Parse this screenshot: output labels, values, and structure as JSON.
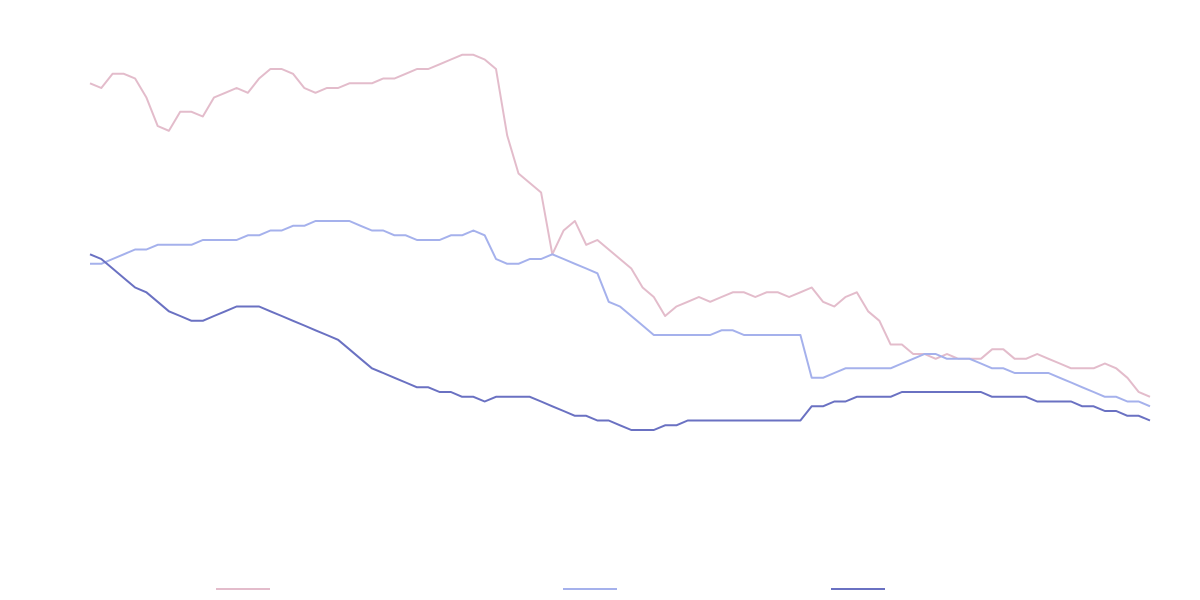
{
  "chart_data": {
    "type": "line",
    "title": "",
    "xlabel": "",
    "ylabel": "",
    "ylim": [
      0,
      100
    ],
    "grid": false,
    "legend_position": "bottom",
    "series": [
      {
        "color": "#e3bccb",
        "values": [
          93,
          92,
          95,
          95,
          94,
          90,
          84,
          83,
          87,
          87,
          86,
          90,
          91,
          92,
          91,
          94,
          96,
          96,
          95,
          92,
          91,
          92,
          92,
          93,
          93,
          93,
          94,
          94,
          95,
          96,
          96,
          97,
          98,
          99,
          99,
          98,
          96,
          82,
          74,
          72,
          70,
          57,
          62,
          64,
          59,
          60,
          58,
          56,
          54,
          50,
          48,
          44,
          46,
          47,
          48,
          47,
          48,
          49,
          49,
          48,
          49,
          49,
          48,
          49,
          50,
          47,
          46,
          48,
          49,
          45,
          43,
          38,
          38,
          36,
          36,
          35,
          36,
          35,
          35,
          35,
          37,
          37,
          35,
          35,
          36,
          35,
          34,
          33,
          33,
          33,
          34,
          33,
          31,
          28,
          27
        ]
      },
      {
        "color": "#a5b1ec",
        "values": [
          55,
          55,
          56,
          57,
          58,
          58,
          59,
          59,
          59,
          59,
          60,
          60,
          60,
          60,
          61,
          61,
          62,
          62,
          63,
          63,
          64,
          64,
          64,
          64,
          63,
          62,
          62,
          61,
          61,
          60,
          60,
          60,
          61,
          61,
          62,
          61,
          56,
          55,
          55,
          56,
          56,
          57,
          56,
          55,
          54,
          53,
          47,
          46,
          44,
          42,
          40,
          40,
          40,
          40,
          40,
          40,
          41,
          41,
          40,
          40,
          40,
          40,
          40,
          40,
          31,
          31,
          32,
          33,
          33,
          33,
          33,
          33,
          34,
          35,
          36,
          36,
          35,
          35,
          35,
          34,
          33,
          33,
          32,
          32,
          32,
          32,
          31,
          30,
          29,
          28,
          27,
          27,
          26,
          26,
          25
        ]
      },
      {
        "color": "#6a71c2",
        "values": [
          57,
          56,
          54,
          52,
          50,
          49,
          47,
          45,
          44,
          43,
          43,
          44,
          45,
          46,
          46,
          46,
          45,
          44,
          43,
          42,
          41,
          40,
          39,
          37,
          35,
          33,
          32,
          31,
          30,
          29,
          29,
          28,
          28,
          27,
          27,
          26,
          27,
          27,
          27,
          27,
          26,
          25,
          24,
          23,
          23,
          22,
          22,
          21,
          20,
          20,
          20,
          21,
          21,
          22,
          22,
          22,
          22,
          22,
          22,
          22,
          22,
          22,
          22,
          22,
          25,
          25,
          26,
          26,
          27,
          27,
          27,
          27,
          28,
          28,
          28,
          28,
          28,
          28,
          28,
          28,
          27,
          27,
          27,
          27,
          26,
          26,
          26,
          26,
          25,
          25,
          24,
          24,
          23,
          23,
          22
        ]
      }
    ]
  }
}
